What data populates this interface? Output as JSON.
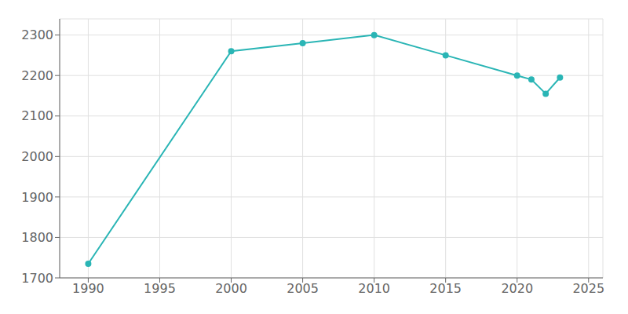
{
  "chart_data": {
    "type": "line",
    "x": [
      1990,
      2000,
      2005,
      2010,
      2015,
      2020,
      2021,
      2022,
      2023
    ],
    "values": [
      1735,
      2260,
      2280,
      2300,
      2250,
      2200,
      2190,
      2155,
      2195
    ],
    "color": "#2ab5b5",
    "marker": "o",
    "xlim": [
      1988,
      2026
    ],
    "ylim": [
      1700,
      2340
    ],
    "xticks": [
      1990,
      1995,
      2000,
      2005,
      2010,
      2015,
      2020,
      2025
    ],
    "yticks": [
      1700,
      1800,
      1900,
      2000,
      2100,
      2200,
      2300
    ],
    "grid": true
  }
}
